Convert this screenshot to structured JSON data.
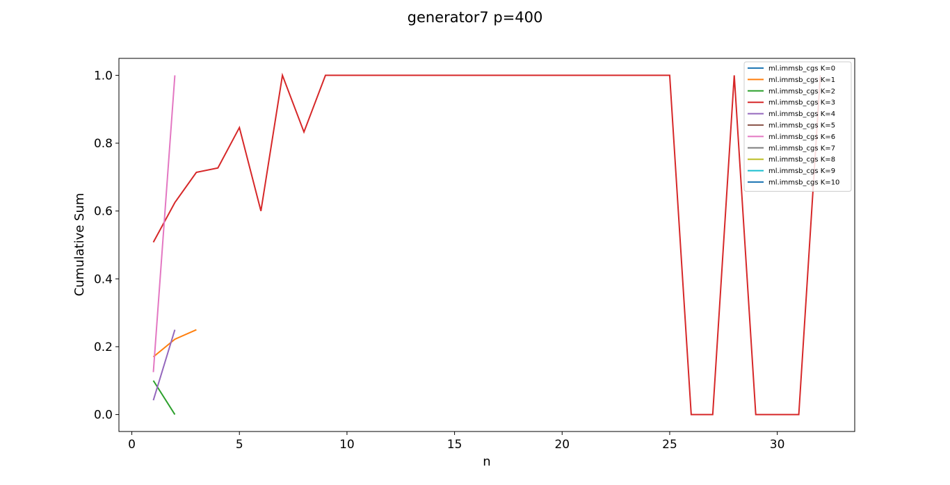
{
  "chart_data": {
    "type": "line",
    "title": "generator7 p=400",
    "xlabel": "n",
    "ylabel": "Cumulative Sum",
    "xlim": [
      -0.6,
      33.6
    ],
    "ylim": [
      -0.05,
      1.05
    ],
    "xticks": [
      0,
      5,
      10,
      15,
      20,
      25,
      30
    ],
    "yticks": [
      0.0,
      0.2,
      0.4,
      0.6,
      0.8,
      1.0
    ],
    "xtick_labels": [
      "0",
      "5",
      "10",
      "15",
      "20",
      "25",
      "30"
    ],
    "ytick_labels": [
      "0.0",
      "0.2",
      "0.4",
      "0.6",
      "0.8",
      "1.0"
    ],
    "grid": false,
    "legend_position": "top-right",
    "series": [
      {
        "name": "ml.immsb_cgs K=0",
        "color": "#1f77b4",
        "x": [],
        "y": []
      },
      {
        "name": "ml.immsb_cgs K=1",
        "color": "#ff7f0e",
        "x": [
          1,
          2,
          3
        ],
        "y": [
          0.17,
          0.222,
          0.25
        ]
      },
      {
        "name": "ml.immsb_cgs K=2",
        "color": "#2ca02c",
        "x": [
          1,
          2
        ],
        "y": [
          0.1,
          0.0
        ]
      },
      {
        "name": "ml.immsb_cgs K=3",
        "color": "#d62728",
        "x": [
          1,
          2,
          3,
          4,
          5,
          6,
          7,
          8,
          9,
          10,
          11,
          12,
          13,
          14,
          15,
          16,
          17,
          18,
          19,
          20,
          21,
          22,
          23,
          24,
          25,
          26,
          27,
          28,
          29,
          30,
          31,
          32
        ],
        "y": [
          0.508,
          0.625,
          0.714,
          0.727,
          0.846,
          0.6,
          1.0,
          0.833,
          1.0,
          1.0,
          1.0,
          1.0,
          1.0,
          1.0,
          1.0,
          1.0,
          1.0,
          1.0,
          1.0,
          1.0,
          1.0,
          1.0,
          1.0,
          1.0,
          1.0,
          0.0,
          0.0,
          1.0,
          0.0,
          0.0,
          0.0,
          1.0
        ]
      },
      {
        "name": "ml.immsb_cgs K=4",
        "color": "#9467bd",
        "x": [
          1,
          2
        ],
        "y": [
          0.042,
          0.25
        ]
      },
      {
        "name": "ml.immsb_cgs K=5",
        "color": "#8c564b",
        "x": [],
        "y": []
      },
      {
        "name": "ml.immsb_cgs K=6",
        "color": "#e377c2",
        "x": [
          1,
          2
        ],
        "y": [
          0.125,
          1.0
        ]
      },
      {
        "name": "ml.immsb_cgs K=7",
        "color": "#7f7f7f",
        "x": [],
        "y": []
      },
      {
        "name": "ml.immsb_cgs K=8",
        "color": "#bcbd22",
        "x": [],
        "y": []
      },
      {
        "name": "ml.immsb_cgs K=9",
        "color": "#17becf",
        "x": [],
        "y": []
      },
      {
        "name": "ml.immsb_cgs K=10",
        "color": "#1f77b4",
        "x": [],
        "y": []
      }
    ]
  }
}
